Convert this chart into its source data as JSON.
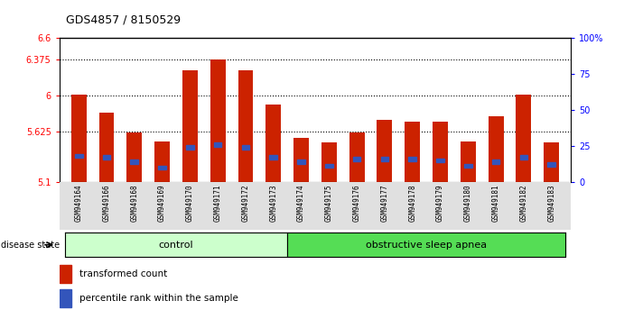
{
  "title": "GDS4857 / 8150529",
  "samples": [
    "GSM949164",
    "GSM949166",
    "GSM949168",
    "GSM949169",
    "GSM949170",
    "GSM949171",
    "GSM949172",
    "GSM949173",
    "GSM949174",
    "GSM949175",
    "GSM949176",
    "GSM949177",
    "GSM949178",
    "GSM949179",
    "GSM949180",
    "GSM949181",
    "GSM949182",
    "GSM949183"
  ],
  "red_values": [
    6.01,
    5.82,
    5.62,
    5.52,
    6.27,
    6.38,
    6.27,
    5.91,
    5.56,
    5.51,
    5.62,
    5.75,
    5.73,
    5.73,
    5.52,
    5.79,
    6.01,
    5.51
  ],
  "blue_values": [
    18,
    17,
    14,
    10,
    24,
    26,
    24,
    17,
    14,
    11,
    16,
    16,
    16,
    15,
    11,
    14,
    17,
    12
  ],
  "y_min": 5.1,
  "y_max": 6.6,
  "y_ticks_left": [
    5.1,
    5.625,
    6.0,
    6.375,
    6.6
  ],
  "y_ticks_left_labels": [
    "5.1",
    "5.625",
    "6",
    "6.375",
    "6.6"
  ],
  "y_ticks_right": [
    0,
    25,
    50,
    75,
    100
  ],
  "y_ticks_right_labels": [
    "0",
    "25",
    "50",
    "75",
    "100%"
  ],
  "hlines": [
    5.625,
    6.0,
    6.375
  ],
  "n_control": 8,
  "n_apnea": 10,
  "control_label": "control",
  "apnea_label": "obstructive sleep apnea",
  "legend_red": "transformed count",
  "legend_blue": "percentile rank within the sample",
  "disease_state_label": "disease state",
  "bar_color": "#CC2200",
  "blue_color": "#3355BB",
  "control_bg": "#CCFFCC",
  "apnea_bg": "#55DD55",
  "bar_width": 0.55
}
